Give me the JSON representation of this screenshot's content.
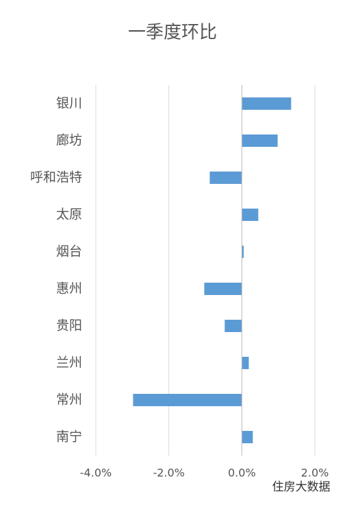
{
  "chart_data": {
    "type": "hbar",
    "title": "一季度环比",
    "categories": [
      "银川",
      "廊坊",
      "呼和浩特",
      "太原",
      "烟台",
      "惠州",
      "贵阳",
      "兰州",
      "常州",
      "南宁"
    ],
    "values": [
      1.35,
      0.98,
      -0.88,
      0.45,
      0.05,
      -1.03,
      -0.47,
      0.19,
      -2.98,
      0.3
    ],
    "color": "#5b9bd5",
    "xlim": [
      -4,
      2
    ],
    "xticks": [
      {
        "value": -4,
        "label": "-4.0%"
      },
      {
        "value": -2,
        "label": "-2.0%"
      },
      {
        "value": 0,
        "label": "0.0%"
      },
      {
        "value": 2,
        "label": "2.0%"
      }
    ],
    "grid": true,
    "watermark": "住房大数据"
  }
}
